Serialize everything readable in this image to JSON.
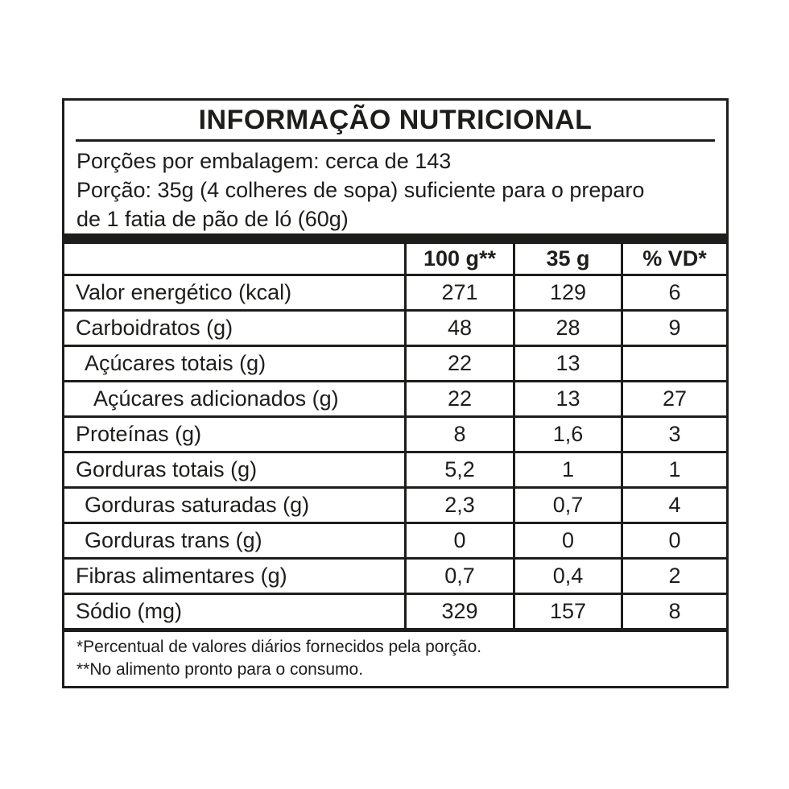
{
  "label": {
    "title": "INFORMAÇÃO NUTRICIONAL",
    "serving_info": [
      "Porções por embalagem: cerca de 143",
      "Porção: 35g (4 colheres de sopa) suficiente para o preparo",
      "de 1 fatia de pão de ló (60g)"
    ],
    "columns": [
      "",
      "100 g**",
      "35 g",
      "% VD*"
    ],
    "rows": [
      {
        "name": "Valor energético (kcal)",
        "indent": 0,
        "per100g": "271",
        "per35g": "129",
        "vd": "6"
      },
      {
        "name": "Carboidratos (g)",
        "indent": 0,
        "per100g": "48",
        "per35g": "28",
        "vd": "9"
      },
      {
        "name": "Açúcares totais (g)",
        "indent": 1,
        "per100g": "22",
        "per35g": "13",
        "vd": ""
      },
      {
        "name": "Açúcares adicionados (g)",
        "indent": 2,
        "per100g": "22",
        "per35g": "13",
        "vd": "27"
      },
      {
        "name": "Proteínas (g)",
        "indent": 0,
        "per100g": "8",
        "per35g": "1,6",
        "vd": "3"
      },
      {
        "name": "Gorduras totais (g)",
        "indent": 0,
        "per100g": "5,2",
        "per35g": "1",
        "vd": "1"
      },
      {
        "name": "Gorduras saturadas (g)",
        "indent": 1,
        "per100g": "2,3",
        "per35g": "0,7",
        "vd": "4"
      },
      {
        "name": "Gorduras trans (g)",
        "indent": 1,
        "per100g": "0",
        "per35g": "0",
        "vd": "0"
      },
      {
        "name": "Fibras alimentares (g)",
        "indent": 0,
        "per100g": "0,7",
        "per35g": "0,4",
        "vd": "2"
      },
      {
        "name": "Sódio (mg)",
        "indent": 0,
        "per100g": "329",
        "per35g": "157",
        "vd": "8"
      }
    ],
    "footnotes": [
      "*Percentual de valores diários fornecidos pela porção.",
      "**No alimento pronto para o consumo."
    ],
    "colors": {
      "ink": "#1d1d1b",
      "background": "#ffffff"
    }
  }
}
